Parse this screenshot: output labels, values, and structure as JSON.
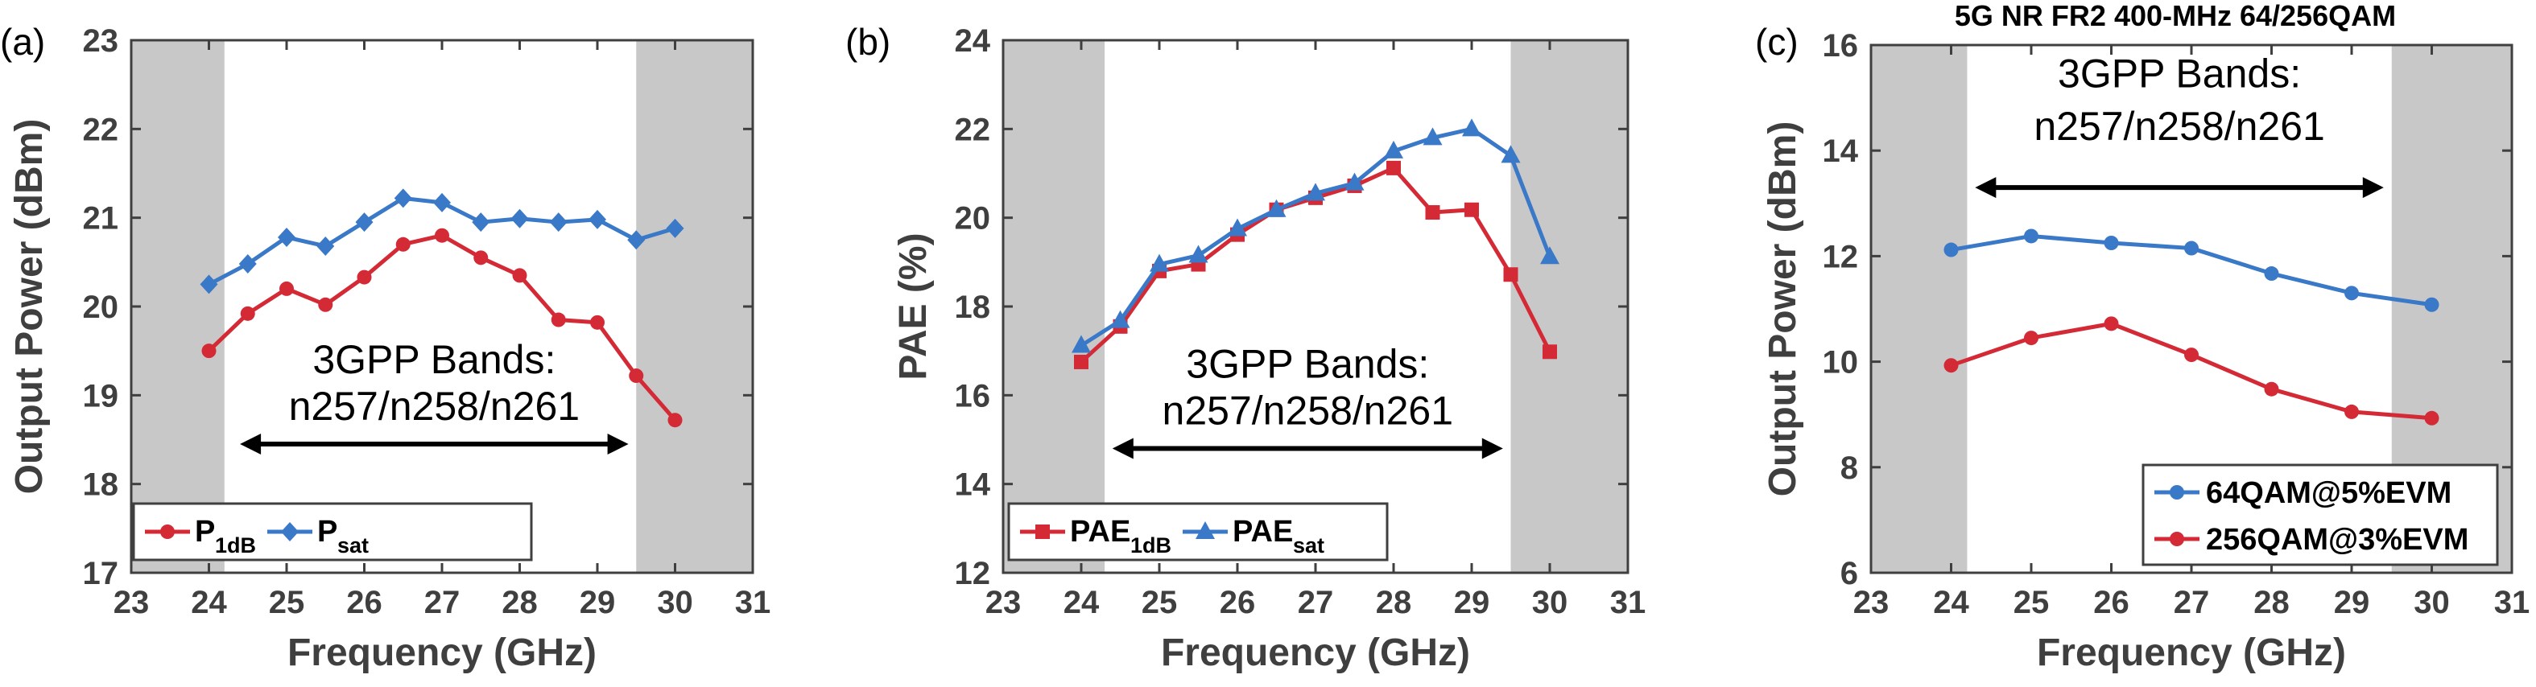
{
  "colors": {
    "red": "#d42a36",
    "blue": "#3a78c8",
    "shade": "#c8c8c8",
    "axis": "#3f3f3f"
  },
  "chart_data": [
    {
      "type": "line",
      "panel_label": "(a)",
      "title": "",
      "xlabel": "Frequency (GHz)",
      "ylabel": "Output Power (dBm)",
      "xlim": [
        23,
        31
      ],
      "ylim": [
        17,
        23
      ],
      "xticks": [
        "23",
        "24",
        "25",
        "26",
        "27",
        "28",
        "29",
        "30",
        "31"
      ],
      "yticks": [
        "17",
        "18",
        "19",
        "20",
        "21",
        "22",
        "23"
      ],
      "shaded_x_ranges": [
        [
          23,
          24.2
        ],
        [
          29.5,
          31
        ]
      ],
      "annotation": {
        "line1": "3GPP Bands:",
        "line2": "n257/n258/n261",
        "arrow_from": 24.4,
        "arrow_to": 29.4,
        "arrow_y": 18.45
      },
      "legend_placement": "bottom-left",
      "series": [
        {
          "name": "P1dB",
          "name_main": "P",
          "name_sub": "1dB",
          "color": "red",
          "marker": "circle",
          "x": [
            24,
            24.5,
            25,
            25.5,
            26,
            26.5,
            27,
            27.5,
            28,
            28.5,
            29,
            29.5,
            30
          ],
          "y": [
            19.5,
            19.92,
            20.2,
            20.02,
            20.33,
            20.7,
            20.8,
            20.55,
            20.35,
            19.85,
            19.82,
            19.22,
            18.72
          ]
        },
        {
          "name": "Psat",
          "name_main": "P",
          "name_sub": "sat",
          "color": "blue",
          "marker": "diamond",
          "x": [
            24,
            24.5,
            25,
            25.5,
            26,
            26.5,
            27,
            27.5,
            28,
            28.5,
            29,
            29.5,
            30
          ],
          "y": [
            20.25,
            20.48,
            20.78,
            20.68,
            20.95,
            21.22,
            21.17,
            20.95,
            20.99,
            20.95,
            20.98,
            20.75,
            20.88
          ]
        }
      ]
    },
    {
      "type": "line",
      "panel_label": "(b)",
      "title": "",
      "xlabel": "Frequency (GHz)",
      "ylabel": "PAE (%)",
      "xlim": [
        23,
        31
      ],
      "ylim": [
        12,
        24
      ],
      "xticks": [
        "23",
        "24",
        "25",
        "26",
        "27",
        "28",
        "29",
        "30",
        "31"
      ],
      "yticks": [
        "12",
        "14",
        "16",
        "18",
        "20",
        "22",
        "24"
      ],
      "shaded_x_ranges": [
        [
          23,
          24.3
        ],
        [
          29.5,
          31
        ]
      ],
      "annotation": {
        "line1": "3GPP Bands:",
        "line2": "n257/n258/n261",
        "arrow_from": 24.4,
        "arrow_to": 29.4,
        "arrow_y": 14.8
      },
      "legend_placement": "bottom-left",
      "series": [
        {
          "name": "PAE1dB",
          "name_main": "PAE",
          "name_sub": "1dB",
          "color": "red",
          "marker": "square",
          "x": [
            24,
            24.5,
            25,
            25.5,
            26,
            26.5,
            27,
            27.5,
            28,
            28.5,
            29,
            29.5,
            30
          ],
          "y": [
            16.75,
            17.55,
            18.8,
            18.95,
            19.62,
            20.18,
            20.45,
            20.72,
            21.12,
            20.12,
            20.18,
            18.72,
            16.98
          ]
        },
        {
          "name": "PAEsat",
          "name_main": "PAE",
          "name_sub": "sat",
          "color": "blue",
          "marker": "triangle",
          "x": [
            24,
            24.5,
            25,
            25.5,
            26,
            26.5,
            27,
            27.5,
            28,
            28.5,
            29,
            29.5,
            30
          ],
          "y": [
            17.12,
            17.68,
            18.95,
            19.15,
            19.75,
            20.18,
            20.55,
            20.78,
            21.5,
            21.8,
            22.0,
            21.4,
            19.12
          ]
        }
      ]
    },
    {
      "type": "line",
      "panel_label": "(c)",
      "title": "5G NR FR2 400-MHz 64/256QAM",
      "xlabel": "Frequency (GHz)",
      "ylabel": "Output Power (dBm)",
      "xlim": [
        23,
        31
      ],
      "ylim": [
        6,
        16
      ],
      "xticks": [
        "23",
        "24",
        "25",
        "26",
        "27",
        "28",
        "29",
        "30",
        "31"
      ],
      "yticks": [
        "6",
        "8",
        "10",
        "12",
        "14",
        "16"
      ],
      "shaded_x_ranges": [
        [
          23,
          24.2
        ],
        [
          29.5,
          31
        ]
      ],
      "annotation": {
        "line1": "3GPP Bands:",
        "line2": "n257/n258/n261",
        "arrow_from": 24.3,
        "arrow_to": 29.4,
        "arrow_y": 13.3
      },
      "legend_placement": "bottom-right",
      "series": [
        {
          "name": "64QAM@5%EVM",
          "name_main": "64QAM@5%EVM",
          "name_sub": "",
          "color": "blue",
          "marker": "circle",
          "x": [
            24,
            25,
            26,
            27,
            28,
            29,
            30
          ],
          "y": [
            12.12,
            12.38,
            12.25,
            12.15,
            11.67,
            11.3,
            11.08
          ]
        },
        {
          "name": "256QAM@3%EVM",
          "name_main": "256QAM@3%EVM",
          "name_sub": "",
          "color": "red",
          "marker": "circle",
          "x": [
            24,
            25,
            26,
            27,
            28,
            29,
            30
          ],
          "y": [
            9.93,
            10.45,
            10.72,
            10.13,
            9.48,
            9.05,
            8.93
          ]
        }
      ]
    }
  ]
}
